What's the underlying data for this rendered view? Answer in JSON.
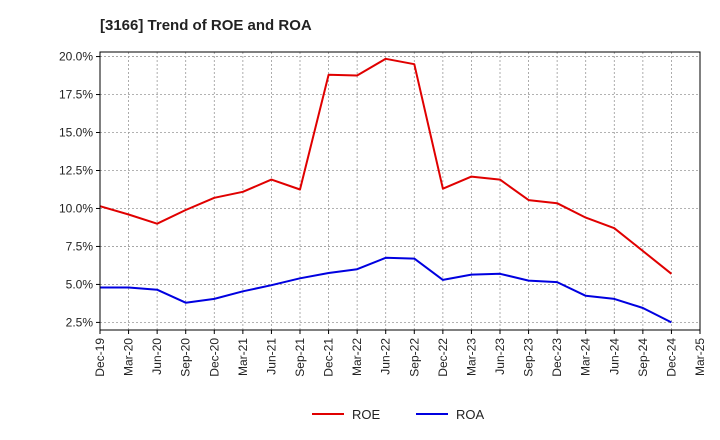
{
  "chart_data": {
    "type": "line",
    "title": "[3166]  Trend of ROE and ROA",
    "xlabel": "",
    "ylabel": "",
    "categories": [
      "Dec-19",
      "Mar-20",
      "Jun-20",
      "Sep-20",
      "Dec-20",
      "Mar-21",
      "Jun-21",
      "Sep-21",
      "Dec-21",
      "Mar-22",
      "Jun-22",
      "Sep-22",
      "Dec-22",
      "Mar-23",
      "Jun-23",
      "Sep-23",
      "Dec-23",
      "Mar-24",
      "Jun-24",
      "Sep-24",
      "Dec-24",
      "Mar-25"
    ],
    "y_ticks": [
      "2.5%",
      "5.0%",
      "7.5%",
      "10.0%",
      "12.5%",
      "15.0%",
      "17.5%",
      "20.0%"
    ],
    "ylim": [
      2.0,
      20.3
    ],
    "grid": true,
    "legend_position": "bottom-center",
    "series": [
      {
        "name": "ROE",
        "color": "#e00000",
        "values": [
          10.15,
          9.6,
          9.0,
          9.9,
          10.7,
          11.1,
          11.9,
          11.25,
          18.8,
          18.75,
          19.85,
          19.5,
          11.3,
          12.1,
          11.9,
          10.55,
          10.35,
          9.4,
          8.7,
          7.2,
          5.7,
          null
        ]
      },
      {
        "name": "ROA",
        "color": "#0000e0",
        "values": [
          4.8,
          4.8,
          4.65,
          3.8,
          4.05,
          4.55,
          4.95,
          5.4,
          5.75,
          6.0,
          6.75,
          6.7,
          5.3,
          5.65,
          5.7,
          5.25,
          5.15,
          4.25,
          4.05,
          3.45,
          2.5,
          null
        ]
      }
    ]
  }
}
